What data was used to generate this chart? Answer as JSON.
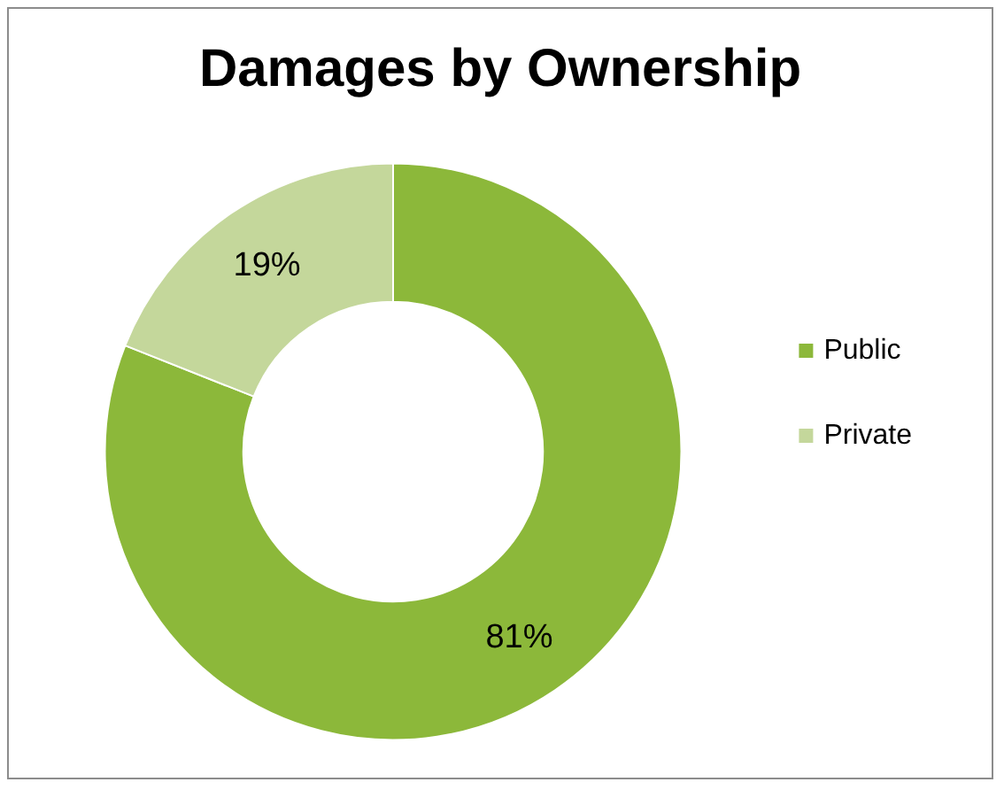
{
  "chart_data": {
    "type": "donut",
    "title": "Damages by Ownership",
    "categories": [
      "Public",
      "Private"
    ],
    "values": [
      81,
      19
    ],
    "colors": [
      "#8cb83a",
      "#c4d79b"
    ],
    "value_labels": [
      "81%",
      "19%"
    ],
    "legend": "right"
  }
}
